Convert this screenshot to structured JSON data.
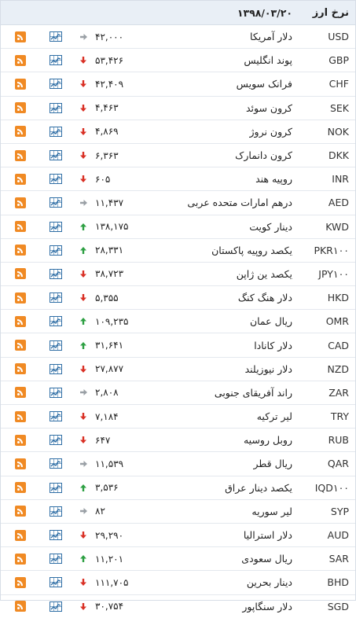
{
  "header": {
    "title": "نرخ ارز",
    "date": "۱۳۹۸/۰۳/۲۰"
  },
  "colors": {
    "up": "#2ea043",
    "down": "#d93025",
    "same": "#9aa0a6",
    "rss": "#f08a24",
    "chart": "#2f6ea5"
  },
  "rows": [
    {
      "code": "USD",
      "name": "دلار آمریکا",
      "price": "۴۲,۰۰۰",
      "trend": "same"
    },
    {
      "code": "GBP",
      "name": "پوند انگلیس",
      "price": "۵۳,۴۲۶",
      "trend": "down"
    },
    {
      "code": "CHF",
      "name": "فرانک سویس",
      "price": "۴۲,۴۰۹",
      "trend": "down"
    },
    {
      "code": "SEK",
      "name": "کرون سوئد",
      "price": "۴,۴۶۳",
      "trend": "down"
    },
    {
      "code": "NOK",
      "name": "کرون نروژ",
      "price": "۴,۸۶۹",
      "trend": "down"
    },
    {
      "code": "DKK",
      "name": "کرون دانمارک",
      "price": "۶,۳۶۳",
      "trend": "down"
    },
    {
      "code": "INR",
      "name": "روپیه هند",
      "price": "۶۰۵",
      "trend": "down"
    },
    {
      "code": "AED",
      "name": "درهم امارات متحده عربی",
      "price": "۱۱,۴۳۷",
      "trend": "same"
    },
    {
      "code": "KWD",
      "name": "دینار کویت",
      "price": "۱۳۸,۱۷۵",
      "trend": "up"
    },
    {
      "code": "PKR۱۰۰",
      "name": "یکصد روپیه پاکستان",
      "price": "۲۸,۳۳۱",
      "trend": "up"
    },
    {
      "code": "JPY۱۰۰",
      "name": "یکصد ین ژاپن",
      "price": "۳۸,۷۲۳",
      "trend": "down"
    },
    {
      "code": "HKD",
      "name": "دلار هنگ کنگ",
      "price": "۵,۳۵۵",
      "trend": "down"
    },
    {
      "code": "OMR",
      "name": "ریال عمان",
      "price": "۱۰۹,۲۳۵",
      "trend": "up"
    },
    {
      "code": "CAD",
      "name": "دلار کانادا",
      "price": "۳۱,۶۴۱",
      "trend": "up"
    },
    {
      "code": "NZD",
      "name": "دلار نیوزیلند",
      "price": "۲۷,۸۷۷",
      "trend": "down"
    },
    {
      "code": "ZAR",
      "name": "راند آفریقای جنوبی",
      "price": "۲,۸۰۸",
      "trend": "same"
    },
    {
      "code": "TRY",
      "name": "لیر ترکیه",
      "price": "۷,۱۸۴",
      "trend": "down"
    },
    {
      "code": "RUB",
      "name": "روبل روسیه",
      "price": "۶۴۷",
      "trend": "down"
    },
    {
      "code": "QAR",
      "name": "ریال قطر",
      "price": "۱۱,۵۳۹",
      "trend": "same"
    },
    {
      "code": "IQD۱۰۰",
      "name": "یکصد دینار عراق",
      "price": "۳,۵۳۶",
      "trend": "up"
    },
    {
      "code": "SYP",
      "name": "لیر سوریه",
      "price": "۸۲",
      "trend": "same"
    },
    {
      "code": "AUD",
      "name": "دلار استرالیا",
      "price": "۲۹,۲۹۰",
      "trend": "down"
    },
    {
      "code": "SAR",
      "name": "ریال سعودی",
      "price": "۱۱,۲۰۱",
      "trend": "up"
    },
    {
      "code": "BHD",
      "name": "دینار بحرین",
      "price": "۱۱۱,۷۰۵",
      "trend": "down"
    },
    {
      "code": "SGD",
      "name": "دلار سنگاپور",
      "price": "۳۰,۷۵۴",
      "trend": "down"
    }
  ]
}
